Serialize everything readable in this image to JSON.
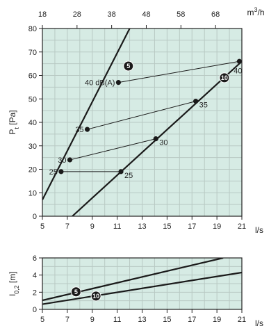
{
  "colors": {
    "plot_bg": "#d6ebe4",
    "grid": "#b8c9c3",
    "axis": "#222222",
    "line": "#1a1a1a"
  },
  "chart_data": [
    {
      "type": "line",
      "ylabel_parts": {
        "main": "P",
        "sub": "t",
        "unit": " [Pa]"
      },
      "xlabel": "l/s",
      "top_axis_label": {
        "main": "m",
        "sup": "3",
        "rest": "/h"
      },
      "xlim": [
        5,
        21
      ],
      "ylim": [
        0,
        80
      ],
      "x_ticks": [
        5,
        7,
        9,
        11,
        13,
        15,
        17,
        19,
        21
      ],
      "y_ticks": [
        0,
        10,
        20,
        30,
        40,
        50,
        60,
        70,
        80
      ],
      "top_ticks": [
        18,
        28,
        38,
        48,
        58,
        68
      ],
      "grid": true,
      "series": [
        {
          "name": "5",
          "x": [
            5,
            12.0
          ],
          "y": [
            7,
            80
          ]
        },
        {
          "name": "10",
          "x": [
            7.4,
            21
          ],
          "y": [
            0,
            66
          ]
        }
      ],
      "series_badges": [
        {
          "text": "5",
          "x": 11.9,
          "y": 64
        },
        {
          "text": "10",
          "x": 19.6,
          "y": 59
        }
      ],
      "noise_lines": [
        {
          "x": [
            6.5,
            11.3
          ],
          "y": [
            19,
            19
          ]
        },
        {
          "x": [
            7.2,
            14.1
          ],
          "y": [
            24,
            33
          ]
        },
        {
          "x": [
            8.6,
            17.3
          ],
          "y": [
            37,
            49
          ]
        },
        {
          "x": [
            11.1,
            20.8
          ],
          "y": [
            57,
            66
          ]
        }
      ],
      "points": [
        {
          "x": 6.5,
          "y": 19,
          "label": "25",
          "side": "left"
        },
        {
          "x": 11.3,
          "y": 19,
          "label": "25",
          "side": "right"
        },
        {
          "x": 7.2,
          "y": 24,
          "label": "30",
          "side": "left"
        },
        {
          "x": 14.1,
          "y": 33,
          "label": "30",
          "side": "right"
        },
        {
          "x": 8.6,
          "y": 37,
          "label": "35",
          "side": "left"
        },
        {
          "x": 17.3,
          "y": 49,
          "label": "35",
          "side": "right"
        },
        {
          "x": 11.1,
          "y": 57,
          "label": "40 dB(A)",
          "side": "left"
        },
        {
          "x": 20.8,
          "y": 66,
          "label": "40",
          "side": "below"
        }
      ]
    },
    {
      "type": "line",
      "ylabel_parts": {
        "main": "l",
        "sub": "0,2",
        "unit": " [m]"
      },
      "xlabel": "l/s",
      "xlim": [
        5,
        21
      ],
      "ylim": [
        0,
        6
      ],
      "x_ticks": [
        5,
        7,
        9,
        11,
        13,
        15,
        17,
        19,
        21
      ],
      "y_ticks": [
        0,
        2,
        4,
        6
      ],
      "grid": true,
      "series": [
        {
          "name": "5",
          "x": [
            5,
            19.5
          ],
          "y": [
            1.05,
            6
          ]
        },
        {
          "name": "10",
          "x": [
            5,
            21
          ],
          "y": [
            0.6,
            4.3
          ]
        }
      ],
      "series_badges": [
        {
          "text": "5",
          "x": 7.7,
          "y": 2.05
        },
        {
          "text": "10",
          "x": 9.3,
          "y": 1.55
        }
      ]
    }
  ]
}
